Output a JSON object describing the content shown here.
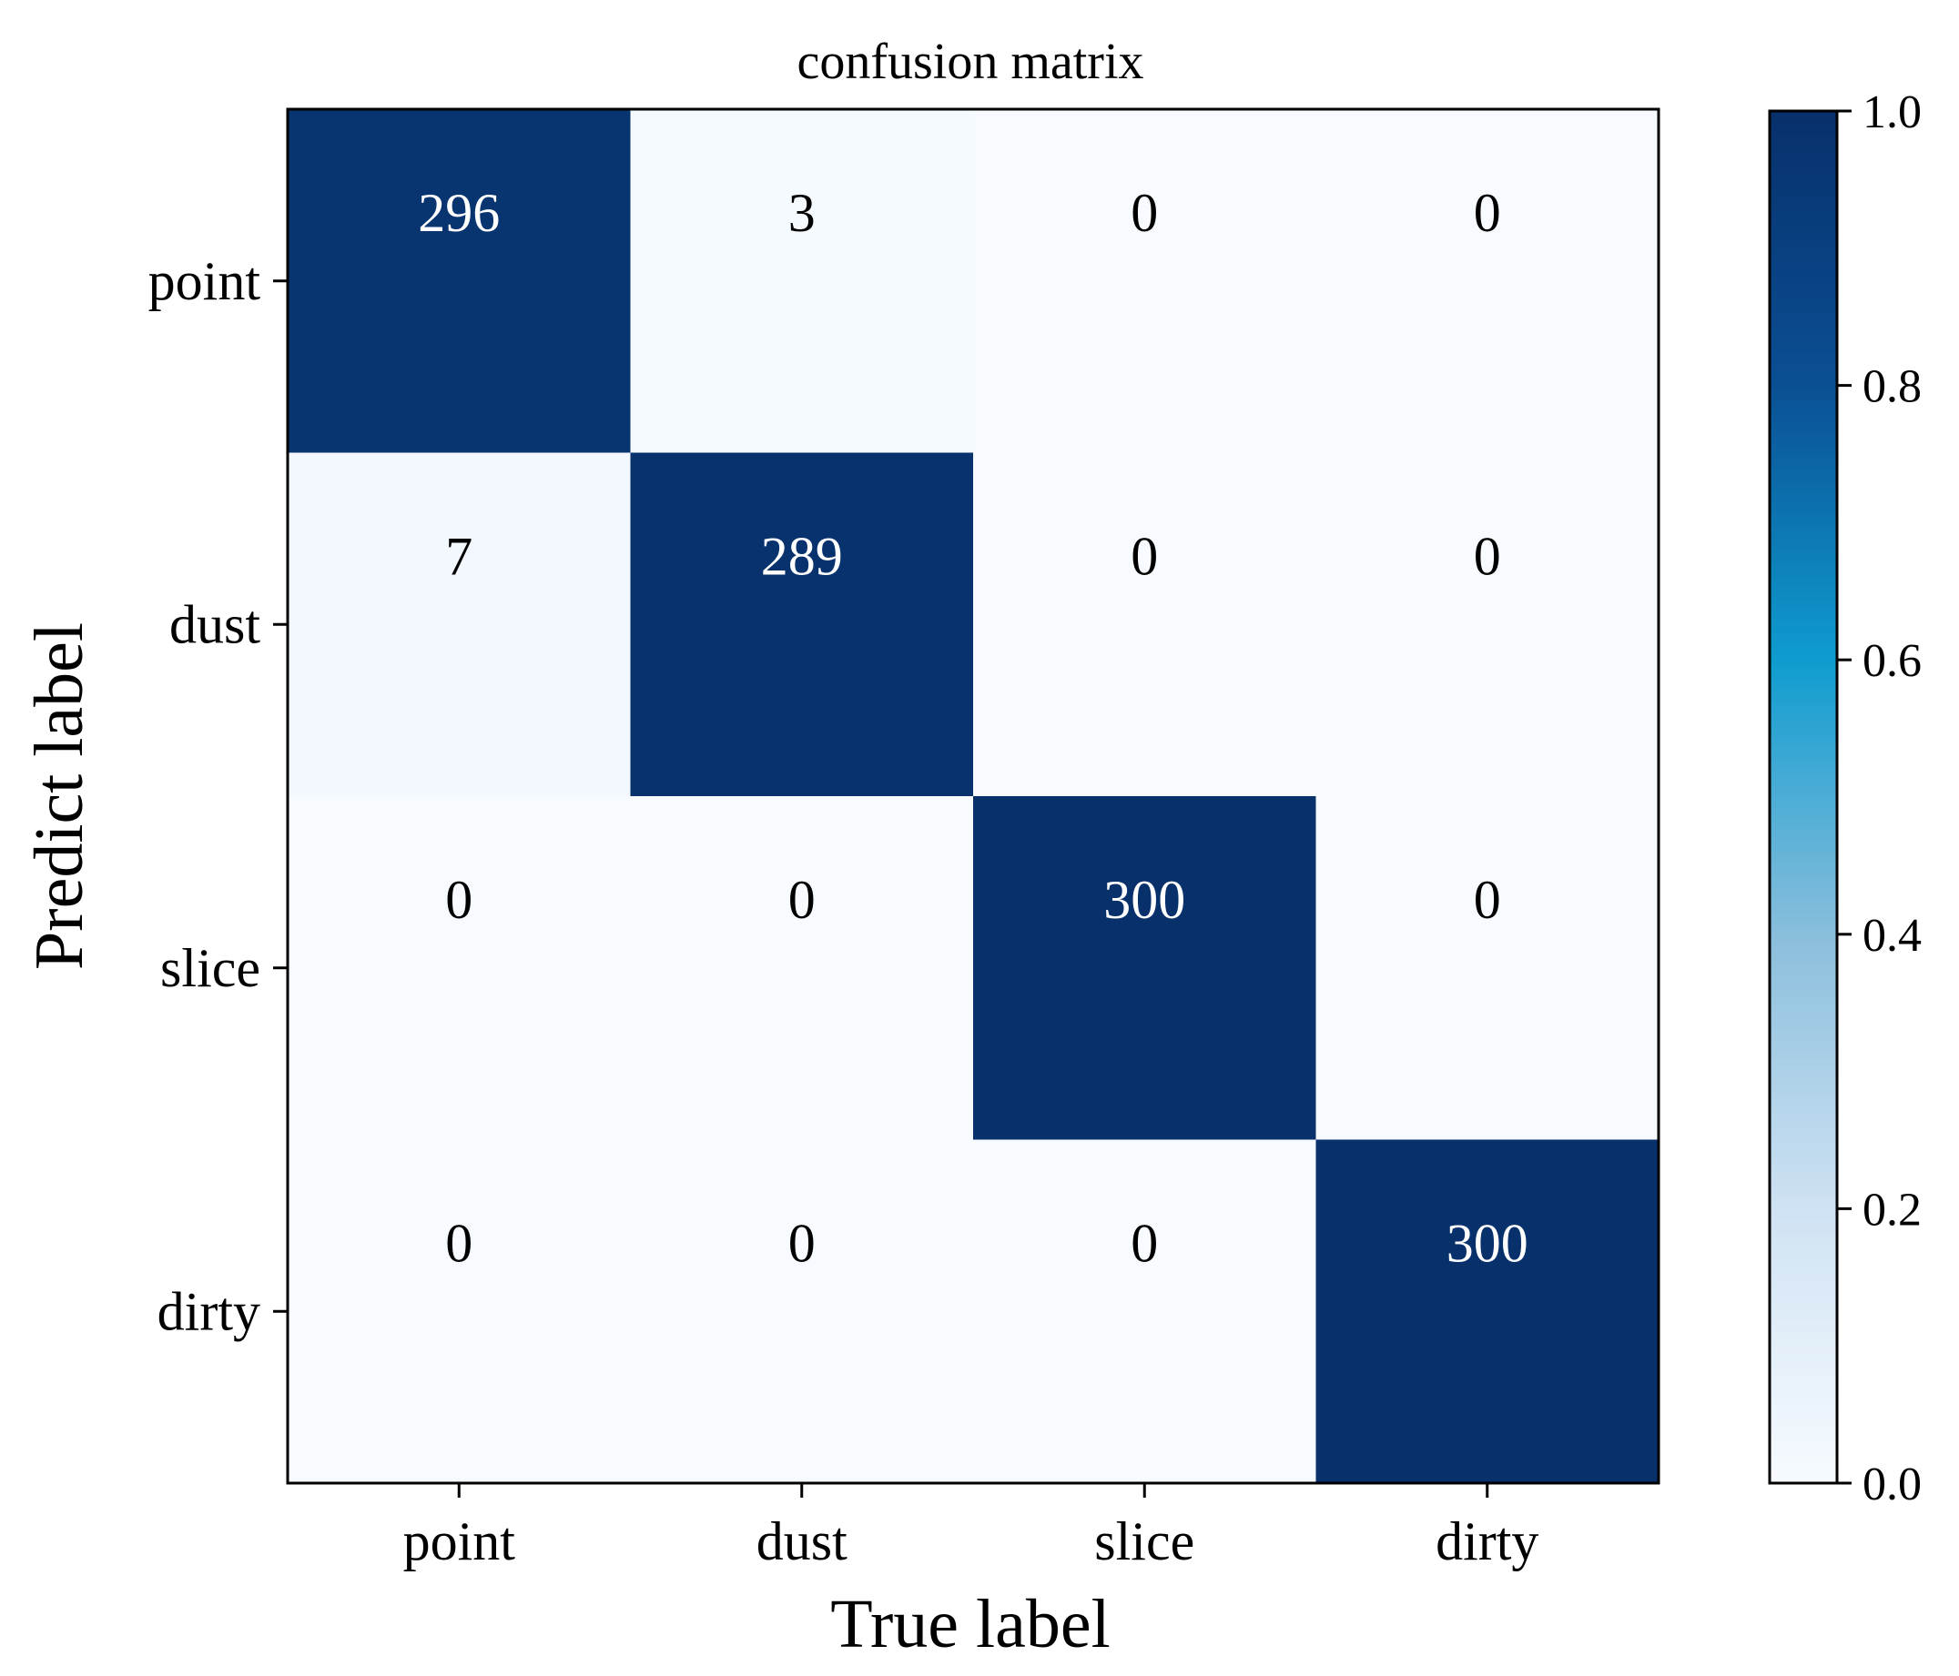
{
  "chart_data": {
    "type": "heatmap",
    "title": "confusion matrix",
    "xlabel": "True label",
    "ylabel": "Predict label",
    "x_categories": [
      "point",
      "dust",
      "slice",
      "dirty"
    ],
    "y_categories": [
      "point",
      "dust",
      "slice",
      "dirty"
    ],
    "matrix": [
      [
        296,
        3,
        0,
        0
      ],
      [
        7,
        289,
        0,
        0
      ],
      [
        0,
        0,
        300,
        0
      ],
      [
        0,
        0,
        0,
        300
      ]
    ],
    "normalization": "column",
    "colormap": "Blues",
    "colorbar": {
      "range": [
        0.0,
        1.0
      ],
      "ticks": [
        "0.0",
        "0.2",
        "0.4",
        "0.6",
        "0.8",
        "1.0"
      ],
      "placement": "right"
    },
    "colors": {
      "high": "#08306b",
      "mid": "#2b95c8",
      "low": "#f7fbff",
      "text_on_dark": "#ffffff",
      "text_on_light": "#000000"
    }
  }
}
